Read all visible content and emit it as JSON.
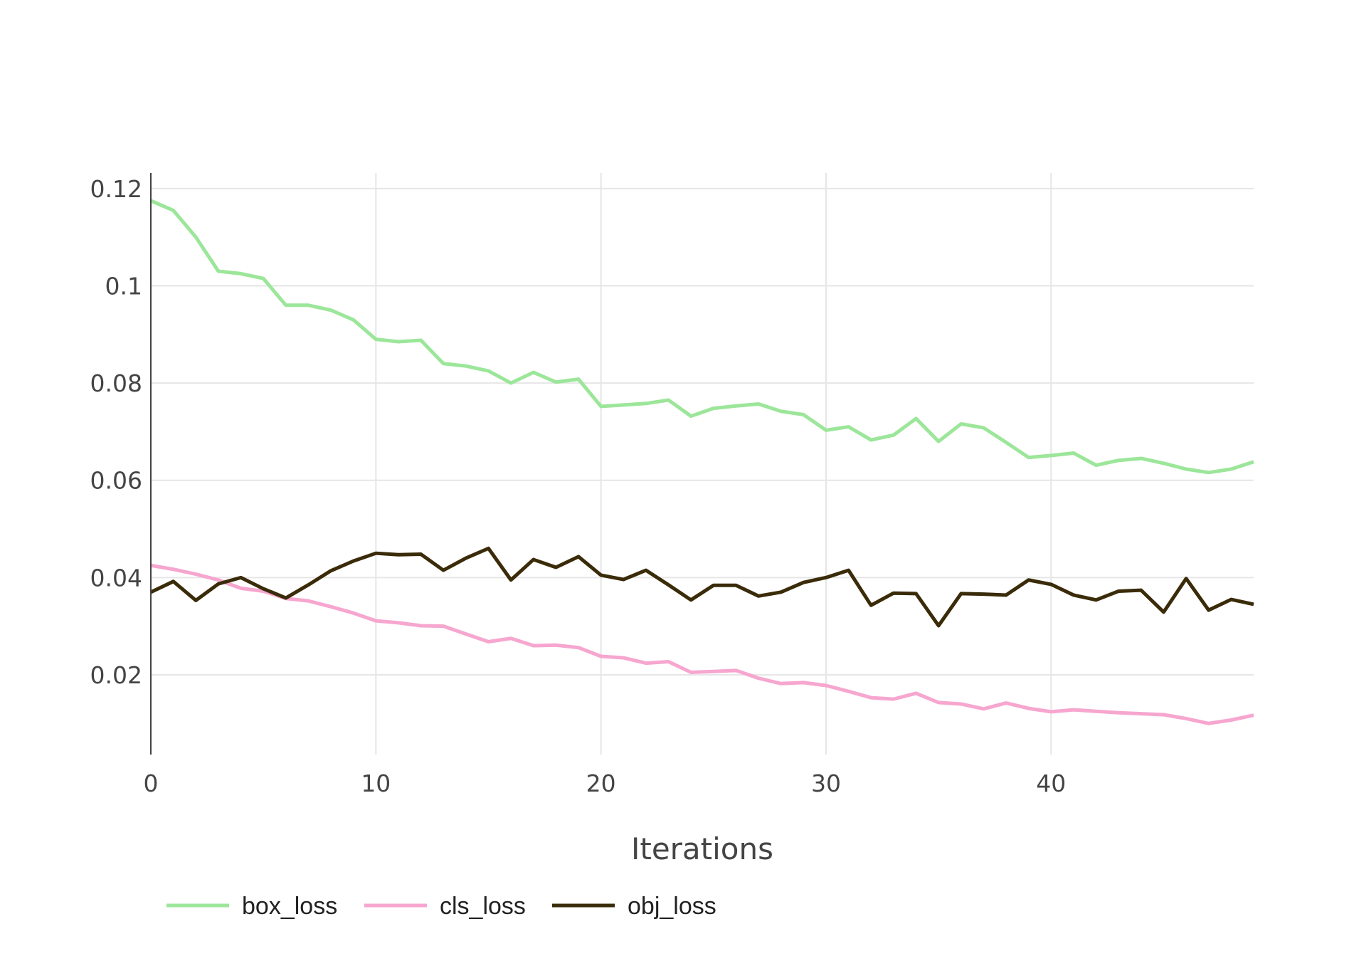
{
  "chart_data": {
    "type": "line",
    "title": "",
    "xlabel": "Iterations",
    "ylabel": "",
    "xlim": [
      0,
      49
    ],
    "ylim": [
      0.0036,
      0.1232
    ],
    "x_ticks": [
      0,
      10,
      20,
      30,
      40
    ],
    "x_tick_labels": [
      "0",
      "10",
      "20",
      "30",
      "40"
    ],
    "y_ticks": [
      0.02,
      0.04,
      0.06,
      0.08,
      0.1,
      0.12
    ],
    "y_tick_labels": [
      "0.02",
      "0.04",
      "0.06",
      "0.08",
      "0.1",
      "0.12"
    ],
    "grid": true,
    "legend_position": "bottom-left",
    "x": [
      0,
      1,
      2,
      3,
      4,
      5,
      6,
      7,
      8,
      9,
      10,
      11,
      12,
      13,
      14,
      15,
      16,
      17,
      18,
      19,
      20,
      21,
      22,
      23,
      24,
      25,
      26,
      27,
      28,
      29,
      30,
      31,
      32,
      33,
      34,
      35,
      36,
      37,
      38,
      39,
      40,
      41,
      42,
      43,
      44,
      45,
      46,
      47,
      48,
      49
    ],
    "series": [
      {
        "name": "box_loss",
        "color": "#9ce69a",
        "values": [
          0.1175,
          0.1155,
          0.11,
          0.103,
          0.1025,
          0.1015,
          0.096,
          0.096,
          0.095,
          0.093,
          0.089,
          0.0885,
          0.0888,
          0.084,
          0.0835,
          0.0825,
          0.08,
          0.0822,
          0.0802,
          0.0808,
          0.0752,
          0.0755,
          0.0758,
          0.0765,
          0.0732,
          0.0748,
          0.0753,
          0.0757,
          0.0742,
          0.0735,
          0.0703,
          0.071,
          0.0683,
          0.0693,
          0.0727,
          0.068,
          0.0716,
          0.0708,
          0.0678,
          0.0647,
          0.0651,
          0.0656,
          0.0631,
          0.0641,
          0.0645,
          0.0635,
          0.0623,
          0.0616,
          0.0623,
          0.0638
        ]
      },
      {
        "name": "cls_loss",
        "color": "#f6a6cf",
        "values": [
          0.0425,
          0.0417,
          0.0407,
          0.0395,
          0.0378,
          0.0372,
          0.0357,
          0.0352,
          0.034,
          0.0327,
          0.0311,
          0.0307,
          0.0301,
          0.03,
          0.0284,
          0.0268,
          0.0275,
          0.026,
          0.0261,
          0.0256,
          0.0238,
          0.0235,
          0.0224,
          0.0227,
          0.0205,
          0.0207,
          0.0209,
          0.0193,
          0.0182,
          0.0184,
          0.0178,
          0.0166,
          0.0153,
          0.015,
          0.0162,
          0.0143,
          0.014,
          0.013,
          0.0142,
          0.0131,
          0.0124,
          0.0128,
          0.0125,
          0.0122,
          0.012,
          0.0118,
          0.011,
          0.01,
          0.0107,
          0.0117
        ]
      },
      {
        "name": "obj_loss",
        "color": "#3a2b09",
        "values": [
          0.037,
          0.0392,
          0.0353,
          0.0387,
          0.04,
          0.0377,
          0.0358,
          0.0385,
          0.0414,
          0.0434,
          0.045,
          0.0447,
          0.0448,
          0.0415,
          0.044,
          0.046,
          0.0395,
          0.0437,
          0.0421,
          0.0443,
          0.0405,
          0.0396,
          0.0415,
          0.0385,
          0.0354,
          0.0384,
          0.0384,
          0.0362,
          0.037,
          0.039,
          0.04,
          0.0415,
          0.0343,
          0.0368,
          0.0367,
          0.0301,
          0.0367,
          0.0366,
          0.0364,
          0.0395,
          0.0386,
          0.0364,
          0.0354,
          0.0372,
          0.0374,
          0.0329,
          0.0398,
          0.0333,
          0.0355,
          0.0345
        ]
      }
    ]
  }
}
